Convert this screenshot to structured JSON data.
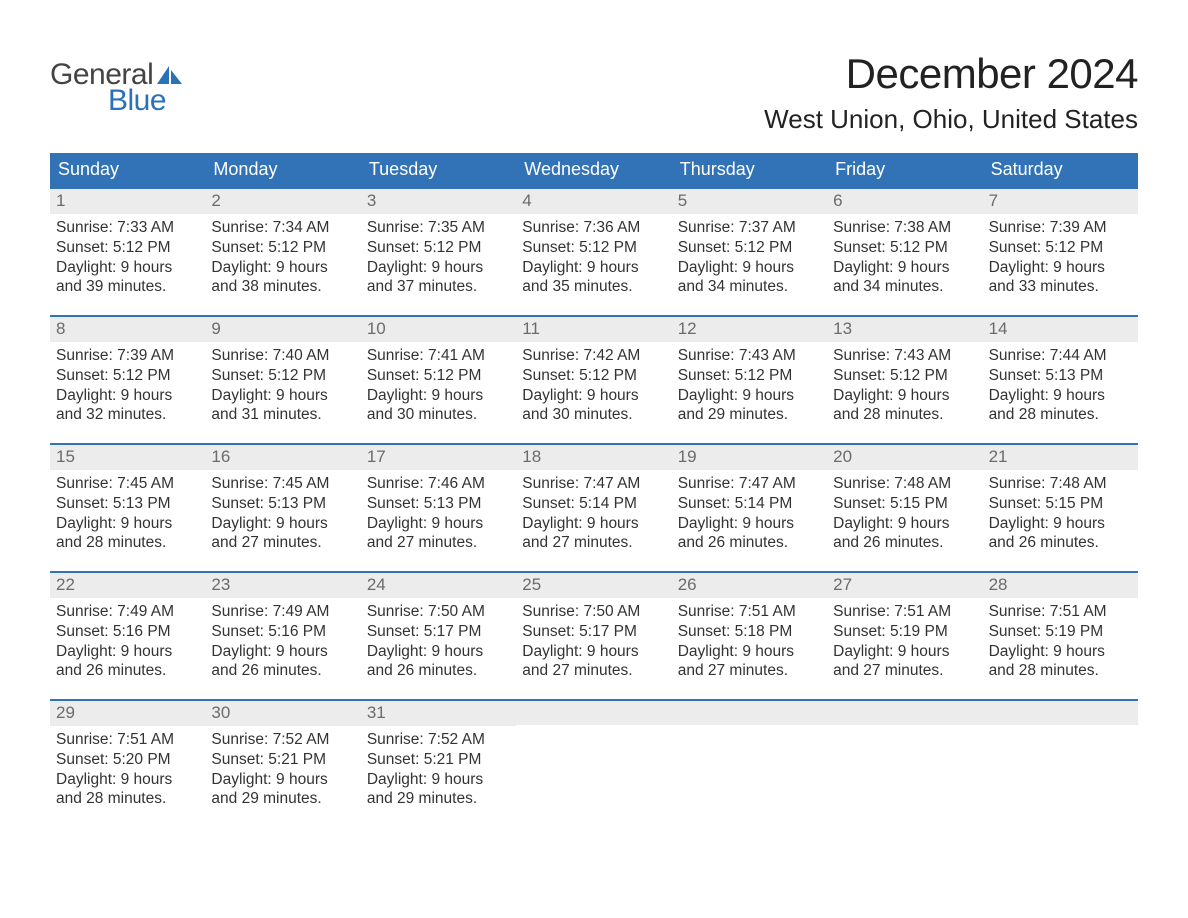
{
  "brand": {
    "word1": "General",
    "word2": "Blue",
    "color1": "#444444",
    "color2": "#2a71b8"
  },
  "title": "December 2024",
  "location": "West Union, Ohio, United States",
  "colors": {
    "header_bg": "#3173b6",
    "header_fg": "#ffffff",
    "daynum_bg": "#ececec",
    "daynum_fg": "#6b6b6b",
    "row_border": "#3173b6",
    "text": "#333333",
    "page_bg": "#ffffff"
  },
  "fonts": {
    "title_size": 42,
    "location_size": 26,
    "weekday_size": 18,
    "daynum_size": 17,
    "body_size": 15.5
  },
  "weekdays": [
    "Sunday",
    "Monday",
    "Tuesday",
    "Wednesday",
    "Thursday",
    "Friday",
    "Saturday"
  ],
  "weeks": [
    [
      {
        "n": "1",
        "sunrise": "Sunrise: 7:33 AM",
        "sunset": "Sunset: 5:12 PM",
        "d1": "Daylight: 9 hours",
        "d2": "and 39 minutes."
      },
      {
        "n": "2",
        "sunrise": "Sunrise: 7:34 AM",
        "sunset": "Sunset: 5:12 PM",
        "d1": "Daylight: 9 hours",
        "d2": "and 38 minutes."
      },
      {
        "n": "3",
        "sunrise": "Sunrise: 7:35 AM",
        "sunset": "Sunset: 5:12 PM",
        "d1": "Daylight: 9 hours",
        "d2": "and 37 minutes."
      },
      {
        "n": "4",
        "sunrise": "Sunrise: 7:36 AM",
        "sunset": "Sunset: 5:12 PM",
        "d1": "Daylight: 9 hours",
        "d2": "and 35 minutes."
      },
      {
        "n": "5",
        "sunrise": "Sunrise: 7:37 AM",
        "sunset": "Sunset: 5:12 PM",
        "d1": "Daylight: 9 hours",
        "d2": "and 34 minutes."
      },
      {
        "n": "6",
        "sunrise": "Sunrise: 7:38 AM",
        "sunset": "Sunset: 5:12 PM",
        "d1": "Daylight: 9 hours",
        "d2": "and 34 minutes."
      },
      {
        "n": "7",
        "sunrise": "Sunrise: 7:39 AM",
        "sunset": "Sunset: 5:12 PM",
        "d1": "Daylight: 9 hours",
        "d2": "and 33 minutes."
      }
    ],
    [
      {
        "n": "8",
        "sunrise": "Sunrise: 7:39 AM",
        "sunset": "Sunset: 5:12 PM",
        "d1": "Daylight: 9 hours",
        "d2": "and 32 minutes."
      },
      {
        "n": "9",
        "sunrise": "Sunrise: 7:40 AM",
        "sunset": "Sunset: 5:12 PM",
        "d1": "Daylight: 9 hours",
        "d2": "and 31 minutes."
      },
      {
        "n": "10",
        "sunrise": "Sunrise: 7:41 AM",
        "sunset": "Sunset: 5:12 PM",
        "d1": "Daylight: 9 hours",
        "d2": "and 30 minutes."
      },
      {
        "n": "11",
        "sunrise": "Sunrise: 7:42 AM",
        "sunset": "Sunset: 5:12 PM",
        "d1": "Daylight: 9 hours",
        "d2": "and 30 minutes."
      },
      {
        "n": "12",
        "sunrise": "Sunrise: 7:43 AM",
        "sunset": "Sunset: 5:12 PM",
        "d1": "Daylight: 9 hours",
        "d2": "and 29 minutes."
      },
      {
        "n": "13",
        "sunrise": "Sunrise: 7:43 AM",
        "sunset": "Sunset: 5:12 PM",
        "d1": "Daylight: 9 hours",
        "d2": "and 28 minutes."
      },
      {
        "n": "14",
        "sunrise": "Sunrise: 7:44 AM",
        "sunset": "Sunset: 5:13 PM",
        "d1": "Daylight: 9 hours",
        "d2": "and 28 minutes."
      }
    ],
    [
      {
        "n": "15",
        "sunrise": "Sunrise: 7:45 AM",
        "sunset": "Sunset: 5:13 PM",
        "d1": "Daylight: 9 hours",
        "d2": "and 28 minutes."
      },
      {
        "n": "16",
        "sunrise": "Sunrise: 7:45 AM",
        "sunset": "Sunset: 5:13 PM",
        "d1": "Daylight: 9 hours",
        "d2": "and 27 minutes."
      },
      {
        "n": "17",
        "sunrise": "Sunrise: 7:46 AM",
        "sunset": "Sunset: 5:13 PM",
        "d1": "Daylight: 9 hours",
        "d2": "and 27 minutes."
      },
      {
        "n": "18",
        "sunrise": "Sunrise: 7:47 AM",
        "sunset": "Sunset: 5:14 PM",
        "d1": "Daylight: 9 hours",
        "d2": "and 27 minutes."
      },
      {
        "n": "19",
        "sunrise": "Sunrise: 7:47 AM",
        "sunset": "Sunset: 5:14 PM",
        "d1": "Daylight: 9 hours",
        "d2": "and 26 minutes."
      },
      {
        "n": "20",
        "sunrise": "Sunrise: 7:48 AM",
        "sunset": "Sunset: 5:15 PM",
        "d1": "Daylight: 9 hours",
        "d2": "and 26 minutes."
      },
      {
        "n": "21",
        "sunrise": "Sunrise: 7:48 AM",
        "sunset": "Sunset: 5:15 PM",
        "d1": "Daylight: 9 hours",
        "d2": "and 26 minutes."
      }
    ],
    [
      {
        "n": "22",
        "sunrise": "Sunrise: 7:49 AM",
        "sunset": "Sunset: 5:16 PM",
        "d1": "Daylight: 9 hours",
        "d2": "and 26 minutes."
      },
      {
        "n": "23",
        "sunrise": "Sunrise: 7:49 AM",
        "sunset": "Sunset: 5:16 PM",
        "d1": "Daylight: 9 hours",
        "d2": "and 26 minutes."
      },
      {
        "n": "24",
        "sunrise": "Sunrise: 7:50 AM",
        "sunset": "Sunset: 5:17 PM",
        "d1": "Daylight: 9 hours",
        "d2": "and 26 minutes."
      },
      {
        "n": "25",
        "sunrise": "Sunrise: 7:50 AM",
        "sunset": "Sunset: 5:17 PM",
        "d1": "Daylight: 9 hours",
        "d2": "and 27 minutes."
      },
      {
        "n": "26",
        "sunrise": "Sunrise: 7:51 AM",
        "sunset": "Sunset: 5:18 PM",
        "d1": "Daylight: 9 hours",
        "d2": "and 27 minutes."
      },
      {
        "n": "27",
        "sunrise": "Sunrise: 7:51 AM",
        "sunset": "Sunset: 5:19 PM",
        "d1": "Daylight: 9 hours",
        "d2": "and 27 minutes."
      },
      {
        "n": "28",
        "sunrise": "Sunrise: 7:51 AM",
        "sunset": "Sunset: 5:19 PM",
        "d1": "Daylight: 9 hours",
        "d2": "and 28 minutes."
      }
    ],
    [
      {
        "n": "29",
        "sunrise": "Sunrise: 7:51 AM",
        "sunset": "Sunset: 5:20 PM",
        "d1": "Daylight: 9 hours",
        "d2": "and 28 minutes."
      },
      {
        "n": "30",
        "sunrise": "Sunrise: 7:52 AM",
        "sunset": "Sunset: 5:21 PM",
        "d1": "Daylight: 9 hours",
        "d2": "and 29 minutes."
      },
      {
        "n": "31",
        "sunrise": "Sunrise: 7:52 AM",
        "sunset": "Sunset: 5:21 PM",
        "d1": "Daylight: 9 hours",
        "d2": "and 29 minutes."
      },
      null,
      null,
      null,
      null
    ]
  ]
}
